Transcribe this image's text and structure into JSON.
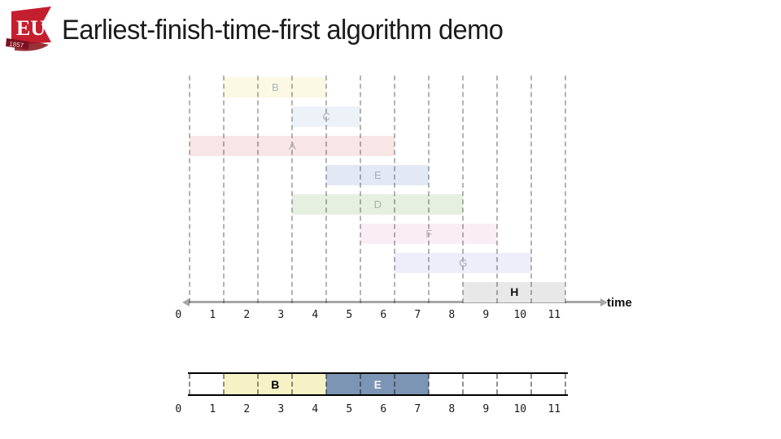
{
  "header": {
    "title": "Earliest-finish-time-first algorithm demo",
    "logo": {
      "monogram": "EU",
      "year": "1857",
      "flag_color": "#c51e2e",
      "ribbon_color": "#7c1220",
      "crest_color": "#8e1b24"
    }
  },
  "chart_data": {
    "type": "interval-schedule-gantt",
    "title": "Earliest-finish-time-first algorithm demo",
    "x_axis": {
      "label": "time",
      "min": 0,
      "max": 11,
      "ticks": [
        "0",
        "1",
        "2",
        "3",
        "4",
        "5",
        "6",
        "7",
        "8",
        "9",
        "10",
        "11"
      ],
      "grid": "dashed-vertical"
    },
    "jobs": [
      {
        "name": "B",
        "start": 1,
        "end": 4,
        "fill": "#fbf9e3",
        "label_color": "#b0b4bc",
        "state": "processed"
      },
      {
        "name": "C",
        "start": 3,
        "end": 5,
        "fill": "#edf2f9",
        "label_color": "#aab1bd",
        "state": "processed"
      },
      {
        "name": "A",
        "start": 0,
        "end": 6,
        "fill": "#f8e6e7",
        "label_color": "#bbaeb3",
        "state": "processed"
      },
      {
        "name": "E",
        "start": 4,
        "end": 7,
        "fill": "#e3e9f4",
        "label_color": "#a7aebc",
        "state": "processed"
      },
      {
        "name": "D",
        "start": 3,
        "end": 8,
        "fill": "#e5f0e0",
        "label_color": "#a7b3a7",
        "state": "processed"
      },
      {
        "name": "F",
        "start": 5,
        "end": 9,
        "fill": "#faeef4",
        "label_color": "#bfb0ba",
        "state": "processed"
      },
      {
        "name": "G",
        "start": 6,
        "end": 10,
        "fill": "#eeeefa",
        "label_color": "#ababc0",
        "state": "processed"
      },
      {
        "name": "H",
        "start": 8,
        "end": 11,
        "fill": "#e8e8e8",
        "label_color": "#111111",
        "state": "current"
      }
    ],
    "selected_timeline": {
      "ticks": [
        "0",
        "1",
        "2",
        "3",
        "4",
        "5",
        "6",
        "7",
        "8",
        "9",
        "10",
        "11"
      ],
      "segments": [
        {
          "name": "B",
          "start": 1,
          "end": 4,
          "fill": "#f6f2c6",
          "label_color": "#000000"
        },
        {
          "name": "E",
          "start": 4,
          "end": 7,
          "fill": "#7c95b4",
          "label_color": "#f2f6fa"
        }
      ]
    }
  }
}
